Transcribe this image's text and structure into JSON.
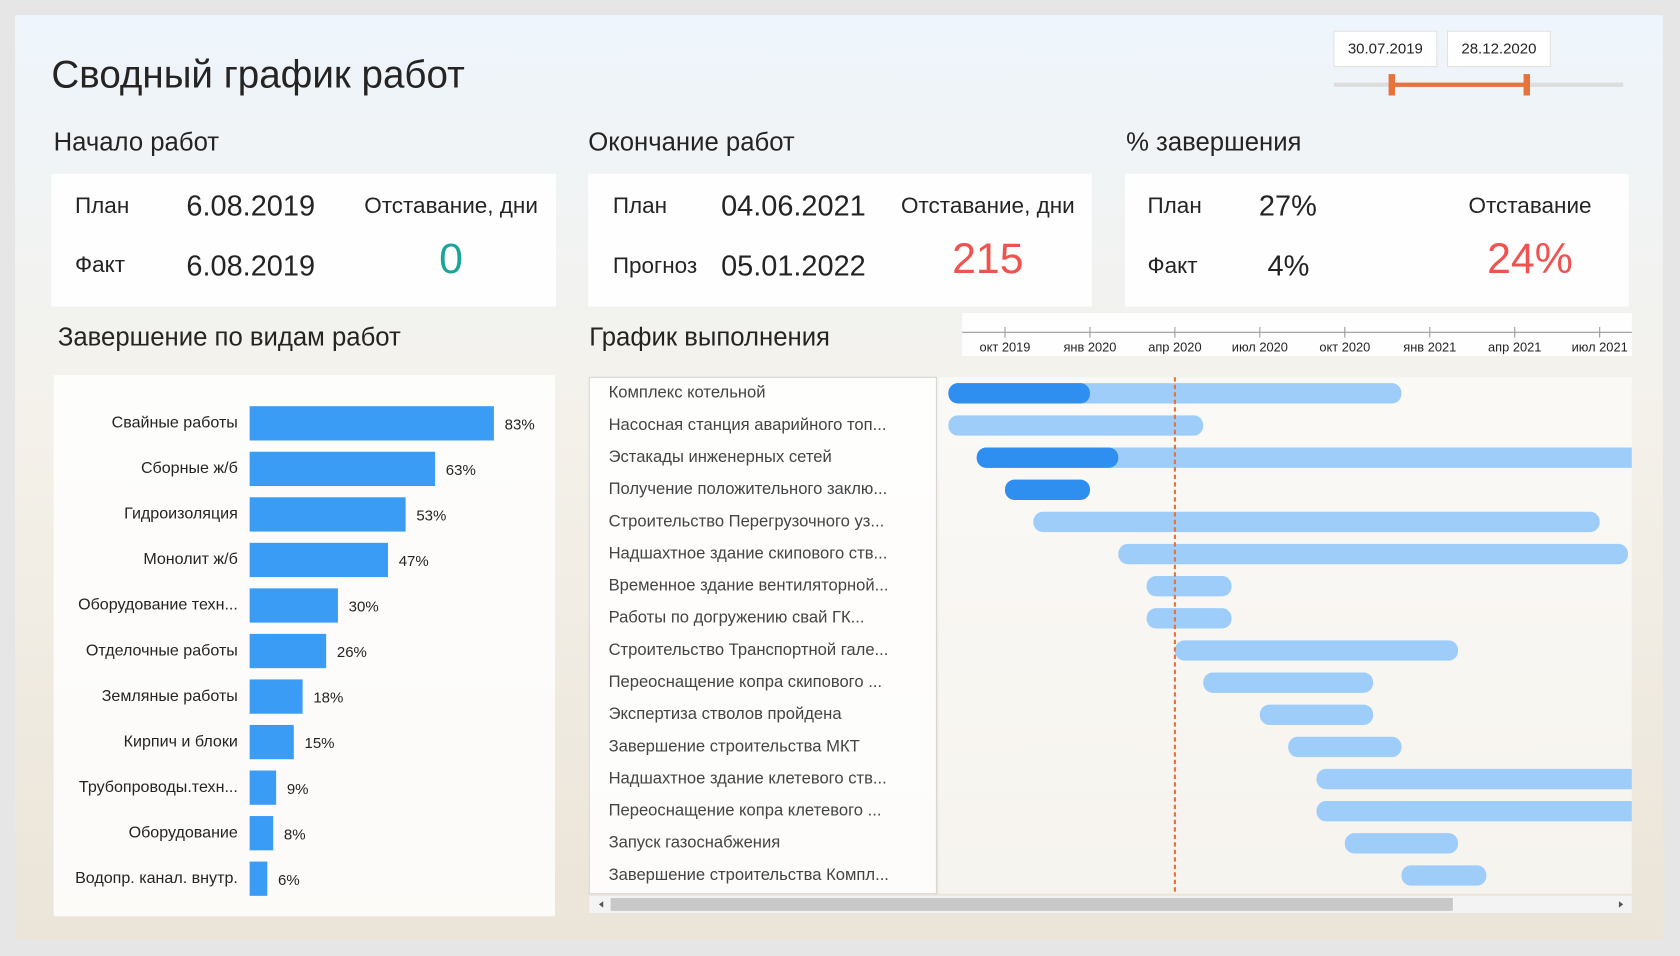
{
  "header": {
    "title": "Сводный график работ"
  },
  "date_range": {
    "start": "30.07.2019",
    "end": "28.12.2020"
  },
  "start_block": {
    "title": "Начало работ",
    "plan_label": "План",
    "plan": "6.08.2019",
    "fact_label": "Факт",
    "fact": "6.08.2019",
    "delay_label": "Отставание, дни",
    "delay": 0
  },
  "end_block": {
    "title": "Окончание работ",
    "plan_label": "План",
    "plan": "04.06.2021",
    "forecast_label": "Прогноз",
    "forecast": "05.01.2022",
    "delay_label": "Отставание, дни",
    "delay": 215
  },
  "completion_block": {
    "title": "% завершения",
    "plan_label": "План",
    "plan": "27%",
    "fact_label": "Факт",
    "fact": "4%",
    "delay_label": "Отставание",
    "delay": "24%"
  },
  "bar_chart": {
    "type": "bar",
    "title": "Завершение по видам работ",
    "color": "#3b9cf5",
    "categories": [
      "Свайные работы",
      "Сборные ж/б",
      "Гидроизоляция",
      "Монолит ж/б",
      "Оборудование техн...",
      "Отделочные работы",
      "Земляные работы",
      "Кирпич и блоки",
      "Трубопроводы.техн...",
      "Оборудование",
      "Водопр. канал. внутр."
    ],
    "values": [
      83,
      63,
      53,
      47,
      30,
      26,
      18,
      15,
      9,
      8,
      6
    ],
    "value_labels": [
      "83%",
      "63%",
      "53%",
      "47%",
      "30%",
      "26%",
      "18%",
      "15%",
      "9%",
      "8%",
      "6%"
    ]
  },
  "gantt": {
    "type": "gantt",
    "title": "График выполнения",
    "color_plan": "#9fcdfa",
    "color_done": "#2f8ff0",
    "marker_color": "#e8723c",
    "xticks": [
      {
        "value": "2019-10",
        "label": "окт 2019"
      },
      {
        "value": "2020-01",
        "label": "янв 2020"
      },
      {
        "value": "2020-04",
        "label": "апр 2020"
      },
      {
        "value": "2020-07",
        "label": "июл 2020"
      },
      {
        "value": "2020-10",
        "label": "окт 2020"
      },
      {
        "value": "2021-01",
        "label": "янв 2021"
      },
      {
        "value": "2021-04",
        "label": "апр 2021"
      },
      {
        "value": "2021-07",
        "label": "июл 2021"
      }
    ],
    "marker": "2020-04",
    "tasks": [
      {
        "name": "Комплекс котельной",
        "start": "2019-08",
        "end": "2020-12",
        "done": "2020-01"
      },
      {
        "name": "Насосная станция аварийного топ...",
        "start": "2019-08",
        "end": "2020-05"
      },
      {
        "name": "Эстакады инженерных сетей",
        "start": "2019-09",
        "end": "2021-09",
        "done": "2020-02"
      },
      {
        "name": "Получение положительного заклю...",
        "start": "2019-10",
        "end": "2020-01",
        "done": "2020-01"
      },
      {
        "name": "Строительство Перегрузочного уз...",
        "start": "2019-11",
        "end": "2021-07"
      },
      {
        "name": "Надшахтное здание скипового ств...",
        "start": "2020-02",
        "end": "2021-08"
      },
      {
        "name": "Временное здание вентиляторной...",
        "start": "2020-03",
        "end": "2020-06"
      },
      {
        "name": "Работы по догружению свай ГК...",
        "start": "2020-03",
        "end": "2020-06"
      },
      {
        "name": "Строительство Транспортной гале...",
        "start": "2020-04",
        "end": "2021-02"
      },
      {
        "name": "Переоснащение копра скипового ...",
        "start": "2020-05",
        "end": "2020-11"
      },
      {
        "name": "Экспертиза стволов пройдена",
        "start": "2020-07",
        "end": "2020-11"
      },
      {
        "name": "Завершение строительства МКТ",
        "start": "2020-08",
        "end": "2020-12"
      },
      {
        "name": "Надшахтное здание клетевого ств...",
        "start": "2020-09",
        "end": "2021-09"
      },
      {
        "name": "Переоснащение копра клетевого ...",
        "start": "2020-09",
        "end": "2021-09"
      },
      {
        "name": "Запуск газоснабжения",
        "start": "2020-10",
        "end": "2021-02"
      },
      {
        "name": "Завершение строительства Компл...",
        "start": "2020-12",
        "end": "2021-03"
      }
    ]
  }
}
